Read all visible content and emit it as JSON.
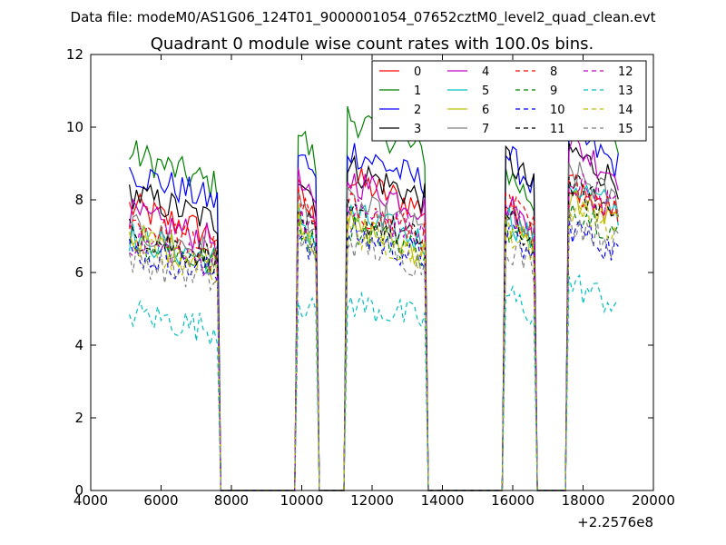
{
  "page": {
    "supertitle": "Data file: modeM0/AS1G06_124T01_9000001054_07652cztM0_level2_quad_clean.evt"
  },
  "chart_data": {
    "type": "line",
    "title": "Quadrant 0 module wise count rates with 100.0s bins.",
    "xlabel": "",
    "ylabel": "",
    "x_offset_label": "+2.2576e8",
    "xlim": [
      4000,
      20000
    ],
    "ylim": [
      0,
      12
    ],
    "xticks": [
      "4000",
      "6000",
      "8000",
      "10000",
      "12000",
      "14000",
      "16000",
      "18000",
      "20000"
    ],
    "yticks": [
      "0",
      "2",
      "4",
      "6",
      "8",
      "10",
      "12"
    ],
    "grid": false,
    "legend_position": "top-right",
    "bin_seconds": 100,
    "segments": [
      {
        "start": 5100,
        "end": 7600
      },
      {
        "start": 9900,
        "end": 10400
      },
      {
        "start": 11300,
        "end": 13500
      },
      {
        "start": 15800,
        "end": 16600
      },
      {
        "start": 17600,
        "end": 19000
      }
    ],
    "series": [
      {
        "name": "0",
        "color": "#ff0000",
        "dash": "solid",
        "levels": [
          7.8,
          8.2,
          8.6,
          7.9,
          8.4
        ]
      },
      {
        "name": "1",
        "color": "#008000",
        "dash": "solid",
        "levels": [
          9.3,
          10.0,
          10.3,
          8.8,
          10.8
        ]
      },
      {
        "name": "2",
        "color": "#0000ff",
        "dash": "solid",
        "levels": [
          8.8,
          9.4,
          9.4,
          9.3,
          9.9
        ]
      },
      {
        "name": "3",
        "color": "#000000",
        "dash": "solid",
        "levels": [
          8.2,
          8.8,
          8.9,
          9.2,
          9.4
        ]
      },
      {
        "name": "4",
        "color": "#bf00bf",
        "dash": "solid",
        "levels": [
          7.6,
          8.5,
          8.6,
          7.9,
          9.6
        ]
      },
      {
        "name": "5",
        "color": "#00bfbf",
        "dash": "solid",
        "levels": [
          7.0,
          7.6,
          7.6,
          7.6,
          8.5
        ]
      },
      {
        "name": "6",
        "color": "#bfbf00",
        "dash": "solid",
        "levels": [
          7.0,
          7.6,
          7.3,
          7.3,
          8.1
        ]
      },
      {
        "name": "7",
        "color": "#808080",
        "dash": "solid",
        "levels": [
          7.2,
          8.0,
          7.9,
          7.7,
          8.8
        ]
      },
      {
        "name": "8",
        "color": "#ff0000",
        "dash": "dashed",
        "levels": [
          7.4,
          8.0,
          7.8,
          8.0,
          8.5
        ]
      },
      {
        "name": "9",
        "color": "#008000",
        "dash": "dashed",
        "levels": [
          6.9,
          7.4,
          7.3,
          7.2,
          7.9
        ]
      },
      {
        "name": "10",
        "color": "#0000ff",
        "dash": "dashed",
        "levels": [
          6.6,
          7.2,
          7.1,
          7.1,
          7.3
        ]
      },
      {
        "name": "11",
        "color": "#000000",
        "dash": "dashed",
        "levels": [
          7.1,
          7.7,
          7.6,
          7.5,
          8.4
        ]
      },
      {
        "name": "12",
        "color": "#bf00bf",
        "dash": "dashed",
        "levels": [
          6.9,
          7.8,
          7.8,
          7.8,
          8.6
        ]
      },
      {
        "name": "13",
        "color": "#00bfbf",
        "dash": "dashed",
        "levels": [
          4.9,
          5.3,
          5.2,
          5.4,
          5.7
        ]
      },
      {
        "name": "14",
        "color": "#bfbf00",
        "dash": "dashed",
        "levels": [
          6.7,
          7.5,
          7.2,
          7.3,
          7.9
        ]
      },
      {
        "name": "15",
        "color": "#808080",
        "dash": "dashed",
        "levels": [
          6.4,
          7.0,
          6.9,
          6.8,
          7.5
        ]
      }
    ]
  }
}
